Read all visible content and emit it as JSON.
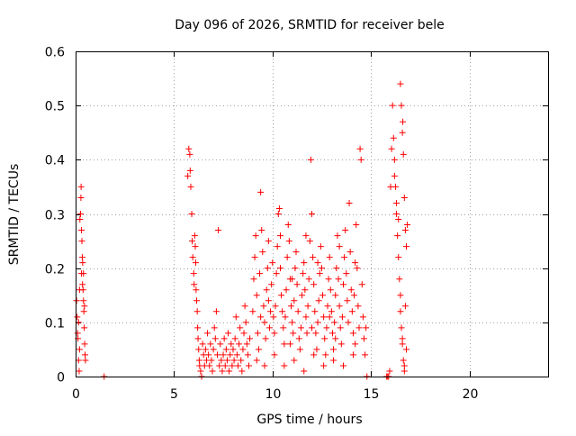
{
  "chart_data": {
    "type": "scatter",
    "title": "Day 096 of 2026, SRMTID for receiver bele",
    "xlabel": "GPS time / hours",
    "ylabel": "SRMTID / TECUs",
    "xlim": [
      0,
      24
    ],
    "ylim": [
      0,
      0.6
    ],
    "xticks": [
      0,
      5,
      10,
      15,
      20
    ],
    "xtick_labels": [
      "0",
      "5",
      "10",
      "15",
      "20"
    ],
    "yticks": [
      0,
      0.1,
      0.2,
      0.3,
      0.4,
      0.5,
      0.6
    ],
    "ytick_labels": [
      "0",
      "0.1",
      "0.2",
      "0.3",
      "0.4",
      "0.5",
      "0.6"
    ],
    "grid": true,
    "legend": "none",
    "marker": "+",
    "color": "#ff0000",
    "series": [
      {
        "name": "SRMTID",
        "points": [
          [
            0.05,
            0.14
          ],
          [
            0.08,
            0.11
          ],
          [
            0.1,
            0.08
          ],
          [
            0.12,
            0.07
          ],
          [
            0.15,
            0.03
          ],
          [
            0.18,
            0.01
          ],
          [
            0.2,
            0.16
          ],
          [
            0.22,
            0.29
          ],
          [
            0.25,
            0.3
          ],
          [
            0.27,
            0.33
          ],
          [
            0.28,
            0.35
          ],
          [
            0.3,
            0.27
          ],
          [
            0.32,
            0.25
          ],
          [
            0.34,
            0.22
          ],
          [
            0.36,
            0.21
          ],
          [
            0.38,
            0.16
          ],
          [
            0.4,
            0.14
          ],
          [
            0.42,
            0.12
          ],
          [
            0.44,
            0.09
          ],
          [
            0.46,
            0.06
          ],
          [
            0.48,
            0.04
          ],
          [
            0.5,
            0.03
          ],
          [
            0.3,
            0.19
          ],
          [
            0.35,
            0.17
          ],
          [
            0.4,
            0.19
          ],
          [
            0.45,
            0.13
          ],
          [
            0.2,
            0.05
          ],
          [
            0.15,
            0.1
          ],
          [
            1.45,
            0.0
          ],
          [
            5.7,
            0.37
          ],
          [
            5.75,
            0.42
          ],
          [
            5.8,
            0.41
          ],
          [
            5.82,
            0.38
          ],
          [
            5.85,
            0.35
          ],
          [
            5.9,
            0.3
          ],
          [
            5.92,
            0.25
          ],
          [
            5.95,
            0.22
          ],
          [
            6.0,
            0.19
          ],
          [
            6.02,
            0.17
          ],
          [
            6.05,
            0.26
          ],
          [
            6.08,
            0.24
          ],
          [
            6.1,
            0.21
          ],
          [
            6.12,
            0.16
          ],
          [
            6.15,
            0.14
          ],
          [
            6.18,
            0.12
          ],
          [
            6.2,
            0.09
          ],
          [
            6.22,
            0.07
          ],
          [
            6.25,
            0.05
          ],
          [
            6.28,
            0.03
          ],
          [
            6.3,
            0.02
          ],
          [
            6.35,
            0.01
          ],
          [
            6.4,
            0.0
          ],
          [
            6.45,
            0.06
          ],
          [
            6.5,
            0.04
          ],
          [
            6.55,
            0.02
          ],
          [
            6.6,
            0.05
          ],
          [
            6.65,
            0.03
          ],
          [
            6.7,
            0.08
          ],
          [
            6.75,
            0.04
          ],
          [
            6.8,
            0.02
          ],
          [
            6.85,
            0.06
          ],
          [
            6.9,
            0.03
          ],
          [
            6.95,
            0.01
          ],
          [
            7.0,
            0.05
          ],
          [
            7.05,
            0.09
          ],
          [
            7.1,
            0.07
          ],
          [
            7.15,
            0.12
          ],
          [
            7.2,
            0.04
          ],
          [
            7.25,
            0.27
          ],
          [
            7.3,
            0.02
          ],
          [
            7.35,
            0.06
          ],
          [
            7.4,
            0.03
          ],
          [
            7.45,
            0.01
          ],
          [
            7.5,
            0.04
          ],
          [
            7.55,
            0.07
          ],
          [
            7.6,
            0.02
          ],
          [
            7.65,
            0.05
          ],
          [
            7.7,
            0.03
          ],
          [
            7.75,
            0.08
          ],
          [
            7.8,
            0.01
          ],
          [
            7.85,
            0.04
          ],
          [
            7.9,
            0.06
          ],
          [
            7.95,
            0.02
          ],
          [
            8.0,
            0.05
          ],
          [
            8.05,
            0.03
          ],
          [
            8.1,
            0.07
          ],
          [
            8.15,
            0.11
          ],
          [
            8.2,
            0.04
          ],
          [
            8.25,
            0.02
          ],
          [
            8.3,
            0.06
          ],
          [
            8.35,
            0.09
          ],
          [
            8.4,
            0.03
          ],
          [
            8.45,
            0.01
          ],
          [
            8.5,
            0.05
          ],
          [
            8.55,
            0.08
          ],
          [
            8.6,
            0.13
          ],
          [
            8.65,
            0.1
          ],
          [
            8.7,
            0.06
          ],
          [
            8.75,
            0.04
          ],
          [
            8.8,
            0.02
          ],
          [
            8.85,
            0.07
          ],
          [
            9.0,
            0.12
          ],
          [
            9.05,
            0.18
          ],
          [
            9.1,
            0.22
          ],
          [
            9.15,
            0.26
          ],
          [
            9.2,
            0.15
          ],
          [
            9.25,
            0.08
          ],
          [
            9.3,
            0.05
          ],
          [
            9.35,
            0.19
          ],
          [
            9.4,
            0.34
          ],
          [
            9.45,
            0.27
          ],
          [
            9.5,
            0.23
          ],
          [
            9.55,
            0.13
          ],
          [
            9.6,
            0.1
          ],
          [
            9.65,
            0.07
          ],
          [
            9.7,
            0.16
          ],
          [
            9.75,
            0.2
          ],
          [
            9.8,
            0.14
          ],
          [
            9.85,
            0.09
          ],
          [
            9.9,
            0.12
          ],
          [
            9.95,
            0.17
          ],
          [
            10.0,
            0.21
          ],
          [
            10.05,
            0.11
          ],
          [
            10.1,
            0.08
          ],
          [
            10.15,
            0.13
          ],
          [
            10.2,
            0.19
          ],
          [
            10.25,
            0.24
          ],
          [
            10.3,
            0.3
          ],
          [
            10.35,
            0.31
          ],
          [
            10.4,
            0.26
          ],
          [
            10.45,
            0.15
          ],
          [
            10.5,
            0.12
          ],
          [
            10.55,
            0.09
          ],
          [
            10.6,
            0.06
          ],
          [
            10.65,
            0.11
          ],
          [
            10.7,
            0.16
          ],
          [
            10.75,
            0.22
          ],
          [
            10.8,
            0.28
          ],
          [
            10.85,
            0.25
          ],
          [
            10.9,
            0.18
          ],
          [
            10.95,
            0.13
          ],
          [
            11.0,
            0.1
          ],
          [
            11.05,
            0.08
          ],
          [
            11.1,
            0.14
          ],
          [
            11.15,
            0.2
          ],
          [
            11.2,
            0.23
          ],
          [
            11.25,
            0.17
          ],
          [
            11.3,
            0.12
          ],
          [
            11.35,
            0.07
          ],
          [
            11.4,
            0.05
          ],
          [
            11.45,
            0.09
          ],
          [
            11.5,
            0.15
          ],
          [
            11.55,
            0.19
          ],
          [
            11.6,
            0.21
          ],
          [
            11.65,
            0.16
          ],
          [
            11.7,
            0.11
          ],
          [
            11.75,
            0.08
          ],
          [
            11.8,
            0.13
          ],
          [
            11.85,
            0.18
          ],
          [
            11.9,
            0.25
          ],
          [
            11.95,
            0.4
          ],
          [
            12.0,
            0.3
          ],
          [
            12.05,
            0.22
          ],
          [
            12.1,
            0.17
          ],
          [
            12.15,
            0.12
          ],
          [
            12.2,
            0.08
          ],
          [
            12.25,
            0.05
          ],
          [
            12.3,
            0.1
          ],
          [
            12.35,
            0.14
          ],
          [
            12.4,
            0.19
          ],
          [
            12.45,
            0.24
          ],
          [
            12.5,
            0.2
          ],
          [
            12.55,
            0.15
          ],
          [
            12.6,
            0.11
          ],
          [
            12.65,
            0.07
          ],
          [
            12.7,
            0.04
          ],
          [
            12.75,
            0.09
          ],
          [
            12.8,
            0.13
          ],
          [
            12.85,
            0.18
          ],
          [
            12.9,
            0.22
          ],
          [
            12.95,
            0.16
          ],
          [
            13.0,
            0.12
          ],
          [
            13.05,
            0.08
          ],
          [
            13.1,
            0.05
          ],
          [
            13.15,
            0.1
          ],
          [
            13.2,
            0.15
          ],
          [
            13.25,
            0.2
          ],
          [
            13.3,
            0.26
          ],
          [
            13.35,
            0.18
          ],
          [
            13.4,
            0.13
          ],
          [
            13.45,
            0.09
          ],
          [
            13.5,
            0.06
          ],
          [
            13.55,
            0.11
          ],
          [
            13.6,
            0.17
          ],
          [
            13.65,
            0.22
          ],
          [
            13.7,
            0.27
          ],
          [
            13.75,
            0.19
          ],
          [
            13.8,
            0.14
          ],
          [
            13.85,
            0.1
          ],
          [
            13.9,
            0.32
          ],
          [
            13.95,
            0.23
          ],
          [
            14.0,
            0.16
          ],
          [
            14.05,
            0.12
          ],
          [
            14.1,
            0.08
          ],
          [
            14.15,
            0.15
          ],
          [
            14.2,
            0.21
          ],
          [
            14.25,
            0.28
          ],
          [
            14.3,
            0.2
          ],
          [
            14.35,
            0.13
          ],
          [
            14.4,
            0.09
          ],
          [
            14.45,
            0.42
          ],
          [
            14.5,
            0.4
          ],
          [
            14.55,
            0.17
          ],
          [
            14.6,
            0.11
          ],
          [
            14.65,
            0.07
          ],
          [
            14.7,
            0.04
          ],
          [
            14.75,
            0.09
          ],
          [
            14.8,
            0.0
          ],
          [
            9.2,
            0.03
          ],
          [
            9.6,
            0.02
          ],
          [
            10.1,
            0.04
          ],
          [
            10.6,
            0.02
          ],
          [
            11.1,
            0.03
          ],
          [
            11.6,
            0.01
          ],
          [
            12.1,
            0.04
          ],
          [
            12.6,
            0.02
          ],
          [
            13.1,
            0.03
          ],
          [
            13.6,
            0.02
          ],
          [
            14.1,
            0.04
          ],
          [
            9.8,
            0.25
          ],
          [
            10.4,
            0.2
          ],
          [
            11.0,
            0.18
          ],
          [
            11.7,
            0.26
          ],
          [
            12.3,
            0.21
          ],
          [
            12.9,
            0.11
          ],
          [
            13.4,
            0.24
          ],
          [
            14.2,
            0.06
          ],
          [
            9.4,
            0.11
          ],
          [
            10.9,
            0.06
          ],
          [
            12.0,
            0.09
          ],
          [
            13.2,
            0.07
          ],
          [
            15.8,
            0.0
          ],
          [
            15.85,
            0.0
          ],
          [
            15.9,
            0.0
          ],
          [
            15.95,
            0.01
          ],
          [
            16.0,
            0.35
          ],
          [
            16.05,
            0.42
          ],
          [
            16.1,
            0.5
          ],
          [
            16.15,
            0.44
          ],
          [
            16.2,
            0.4
          ],
          [
            16.25,
            0.35
          ],
          [
            16.3,
            0.3
          ],
          [
            16.35,
            0.26
          ],
          [
            16.4,
            0.22
          ],
          [
            16.45,
            0.18
          ],
          [
            16.5,
            0.12
          ],
          [
            16.55,
            0.09
          ],
          [
            16.6,
            0.06
          ],
          [
            16.65,
            0.03
          ],
          [
            16.7,
            0.01
          ],
          [
            16.2,
            0.37
          ],
          [
            16.3,
            0.32
          ],
          [
            16.4,
            0.29
          ],
          [
            16.5,
            0.54
          ],
          [
            16.55,
            0.5
          ],
          [
            16.6,
            0.45
          ],
          [
            16.62,
            0.47
          ],
          [
            16.65,
            0.41
          ],
          [
            16.7,
            0.33
          ],
          [
            16.75,
            0.27
          ],
          [
            16.8,
            0.24
          ],
          [
            16.85,
            0.28
          ],
          [
            16.5,
            0.15
          ],
          [
            16.6,
            0.07
          ],
          [
            16.7,
            0.02
          ],
          [
            16.75,
            0.13
          ],
          [
            16.8,
            0.05
          ]
        ]
      }
    ]
  }
}
